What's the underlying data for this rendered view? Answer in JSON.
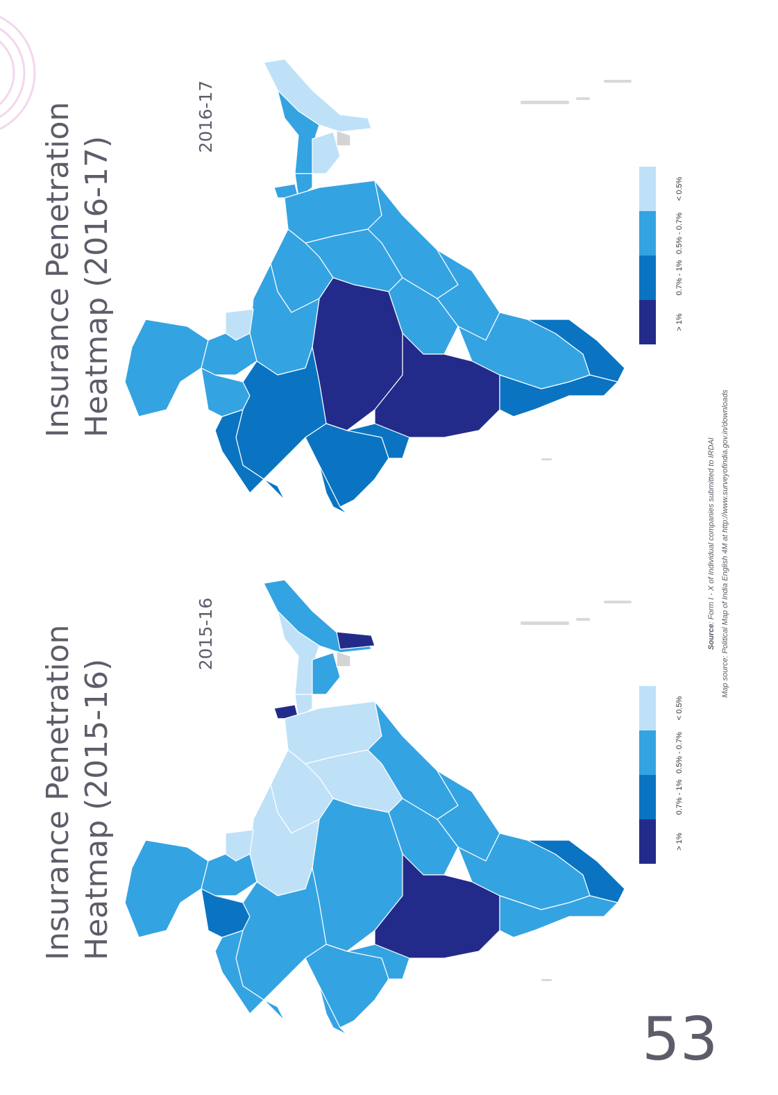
{
  "page_number": "53",
  "source": {
    "source_label": "Source",
    "source_text": ": Form I - X of Individual companies submitted to IRDAI",
    "map_source": "Map source: Political Map of India English 4M at http://www.surveyofindia.gov.in/downloads"
  },
  "colors": {
    "gt_1": "#232b8a",
    "p07_1": "#0a74c2",
    "p05_07": "#34a3e2",
    "lt_05": "#bfe1f7",
    "no_data": "#d4d4d4",
    "deco": "#f6dcf0"
  },
  "maps": [
    {
      "title_line1": "Insurance Penetration",
      "title_line2": "Heatmap (2016-17)",
      "year": "2016-17",
      "legend": [
        {
          "label": "> 1%",
          "color": "#232b8a"
        },
        {
          "label": "0.7% - 1%",
          "color": "#0a74c2"
        },
        {
          "label": "0.5% - 0.7%",
          "color": "#34a3e2"
        },
        {
          "label": "< 0.5%",
          "color": "#bfe1f7"
        }
      ]
    },
    {
      "title_line1": "Insurance Penetration",
      "title_line2": "Heatmap (2015-16)",
      "year": "2015-16",
      "legend": [
        {
          "label": "> 1%",
          "color": "#232b8a"
        },
        {
          "label": "0.7% - 1%",
          "color": "#0a74c2"
        },
        {
          "label": "0.5% - 0.7%",
          "color": "#34a3e2"
        },
        {
          "label": "< 0.5%",
          "color": "#bfe1f7"
        }
      ]
    }
  ]
}
